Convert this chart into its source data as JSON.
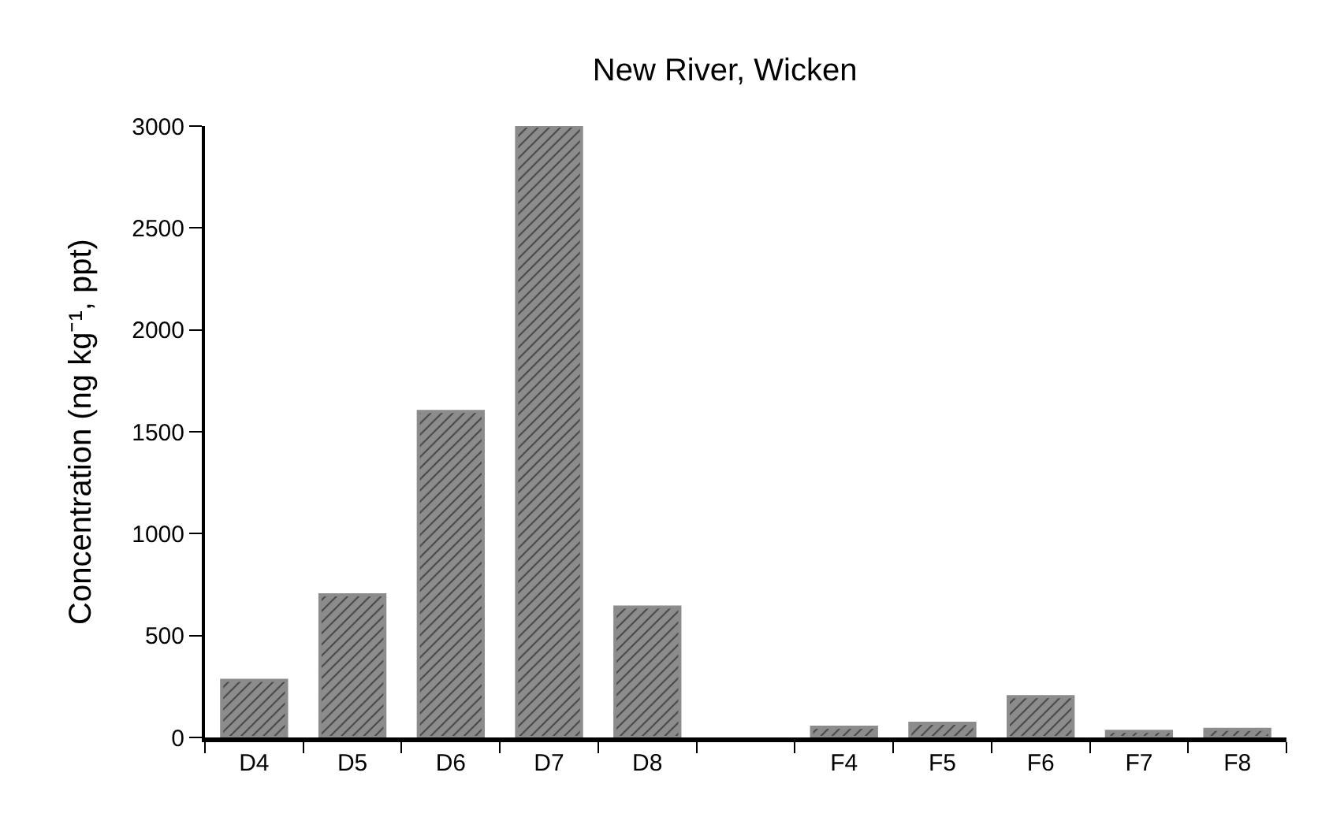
{
  "chart_data": {
    "type": "bar",
    "title": "New River, Wicken",
    "ylabel": "Concentration (ng kg⁻¹, ppt)",
    "categories": [
      "D4",
      "D5",
      "D6",
      "D7",
      "D8",
      null,
      "F4",
      "F5",
      "F6",
      "F7",
      "F8"
    ],
    "values": [
      280,
      700,
      1600,
      3000,
      640,
      null,
      50,
      70,
      200,
      30,
      40
    ],
    "color": "#8c8c8c",
    "ylim": [
      0,
      3000
    ],
    "yticks": [
      0,
      500,
      1000,
      1500,
      2000,
      2500,
      3000
    ],
    "grid": false,
    "legend": false
  }
}
